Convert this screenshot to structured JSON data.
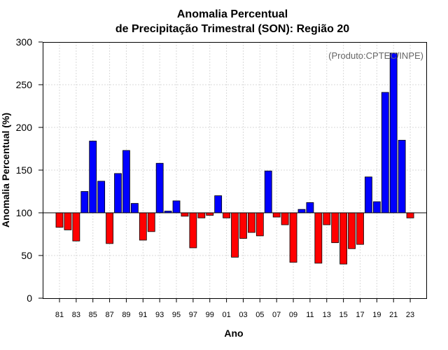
{
  "chart_data": {
    "type": "bar",
    "title": [
      "Anomalia Percentual",
      "de Precipitação Trimestral (SON): Região 20"
    ],
    "xlabel": "Ano",
    "ylabel": "Anomalia Percentual (%)",
    "annotation": "(Produto:CPTEC/INPE)",
    "baseline": 100,
    "ylim": [
      0,
      300
    ],
    "yticks": [
      0,
      50,
      100,
      150,
      200,
      250,
      300
    ],
    "grid": true,
    "colors": {
      "above": "#0000ff",
      "below": "#ff0000",
      "outline": "#000000",
      "grid": "#d9d9d9"
    },
    "categories": [
      "81",
      "82",
      "83",
      "84",
      "85",
      "86",
      "87",
      "88",
      "89",
      "90",
      "91",
      "92",
      "93",
      "94",
      "95",
      "96",
      "97",
      "98",
      "99",
      "00",
      "01",
      "02",
      "03",
      "04",
      "05",
      "06",
      "07",
      "08",
      "09",
      "10",
      "11",
      "12",
      "13",
      "14",
      "15",
      "16",
      "17",
      "18",
      "19",
      "20",
      "21",
      "22",
      "23"
    ],
    "xtick_labels": [
      "81",
      "83",
      "85",
      "87",
      "89",
      "91",
      "93",
      "95",
      "97",
      "99",
      "01",
      "03",
      "05",
      "07",
      "09",
      "11",
      "13",
      "15",
      "17",
      "19",
      "21",
      "23"
    ],
    "values": [
      83,
      80,
      67,
      125,
      184,
      137,
      64,
      146,
      173,
      111,
      68,
      78,
      158,
      102,
      114,
      96,
      59,
      94,
      97,
      120,
      94,
      48,
      70,
      77,
      73,
      149,
      95,
      86,
      42,
      104,
      112,
      41,
      86,
      65,
      40,
      58,
      63,
      142,
      113,
      241,
      287,
      185,
      94
    ]
  }
}
